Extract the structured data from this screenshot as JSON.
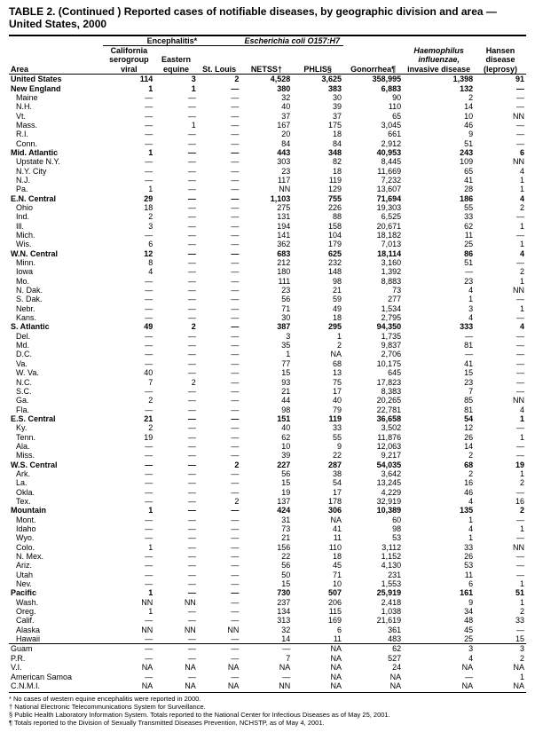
{
  "title": "TABLE 2. (Continued ) Reported cases of notifiable diseases, by geographic division and area — United States, 2000",
  "header": {
    "area": "Area",
    "group_enceph": "Encephalitis*",
    "enceph_ca": "California serogroup viral",
    "enceph_ee": "Eastern equine",
    "enceph_sl": "St. Louis",
    "group_ecoli": "Escherichia coli O157:H7",
    "netss": "NETSS†",
    "phlis": "PHLIS§",
    "gono": "Gonorrhea¶",
    "haemo": "Haemophilus influenzae, invasive disease",
    "hansen": "Hansen disease (leprosy)"
  },
  "footnotes": [
    "* No cases of western equine encephalitis were reported in 2000.",
    "† National Electronic Telecommunications System for Surveillance.",
    "§ Public Health Laboratory Information System. Totals reported to the National Center for Infectious Diseases as of May 25, 2001.",
    "¶ Totals reported to the Division of Sexually Transmitted Diseases Prevention, NCHSTP, as of May 4, 2001."
  ],
  "rows": [
    {
      "area": "United States",
      "bold": true,
      "ca": "114",
      "ee": "3",
      "sl": "2",
      "net": "4,528",
      "ph": "3,625",
      "gon": "358,995",
      "hi": "1,398",
      "hd": "91"
    },
    {
      "area": "New England",
      "bold": true,
      "ca": "1",
      "ee": "1",
      "sl": "—",
      "net": "380",
      "ph": "383",
      "gon": "6,883",
      "hi": "132",
      "hd": "—"
    },
    {
      "area": "Maine",
      "indent": 1,
      "ca": "—",
      "ee": "—",
      "sl": "—",
      "net": "32",
      "ph": "30",
      "gon": "90",
      "hi": "2",
      "hd": "—"
    },
    {
      "area": "N.H.",
      "indent": 1,
      "ca": "—",
      "ee": "—",
      "sl": "—",
      "net": "40",
      "ph": "39",
      "gon": "110",
      "hi": "14",
      "hd": "—"
    },
    {
      "area": "Vt.",
      "indent": 1,
      "ca": "—",
      "ee": "—",
      "sl": "—",
      "net": "37",
      "ph": "37",
      "gon": "65",
      "hi": "10",
      "hd": "NN"
    },
    {
      "area": "Mass.",
      "indent": 1,
      "ca": "—",
      "ee": "1",
      "sl": "—",
      "net": "167",
      "ph": "175",
      "gon": "3,045",
      "hi": "46",
      "hd": "—"
    },
    {
      "area": "R.I.",
      "indent": 1,
      "ca": "—",
      "ee": "—",
      "sl": "—",
      "net": "20",
      "ph": "18",
      "gon": "661",
      "hi": "9",
      "hd": "—"
    },
    {
      "area": "Conn.",
      "indent": 1,
      "ca": "—",
      "ee": "—",
      "sl": "—",
      "net": "84",
      "ph": "84",
      "gon": "2,912",
      "hi": "51",
      "hd": "—"
    },
    {
      "area": "Mid. Atlantic",
      "bold": true,
      "ca": "1",
      "ee": "—",
      "sl": "—",
      "net": "443",
      "ph": "348",
      "gon": "40,953",
      "hi": "243",
      "hd": "6"
    },
    {
      "area": "Upstate N.Y.",
      "indent": 1,
      "ca": "—",
      "ee": "—",
      "sl": "—",
      "net": "303",
      "ph": "82",
      "gon": "8,445",
      "hi": "109",
      "hd": "NN"
    },
    {
      "area": "N.Y. City",
      "indent": 1,
      "ca": "—",
      "ee": "—",
      "sl": "—",
      "net": "23",
      "ph": "18",
      "gon": "11,669",
      "hi": "65",
      "hd": "4"
    },
    {
      "area": "N.J.",
      "indent": 1,
      "ca": "—",
      "ee": "—",
      "sl": "—",
      "net": "117",
      "ph": "119",
      "gon": "7,232",
      "hi": "41",
      "hd": "1"
    },
    {
      "area": "Pa.",
      "indent": 1,
      "ca": "1",
      "ee": "—",
      "sl": "—",
      "net": "NN",
      "ph": "129",
      "gon": "13,607",
      "hi": "28",
      "hd": "1"
    },
    {
      "area": "E.N. Central",
      "bold": true,
      "ca": "29",
      "ee": "—",
      "sl": "—",
      "net": "1,103",
      "ph": "755",
      "gon": "71,694",
      "hi": "186",
      "hd": "4"
    },
    {
      "area": "Ohio",
      "indent": 1,
      "ca": "18",
      "ee": "—",
      "sl": "—",
      "net": "275",
      "ph": "226",
      "gon": "19,303",
      "hi": "55",
      "hd": "2"
    },
    {
      "area": "Ind.",
      "indent": 1,
      "ca": "2",
      "ee": "—",
      "sl": "—",
      "net": "131",
      "ph": "88",
      "gon": "6,525",
      "hi": "33",
      "hd": "—"
    },
    {
      "area": "Ill.",
      "indent": 1,
      "ca": "3",
      "ee": "—",
      "sl": "—",
      "net": "194",
      "ph": "158",
      "gon": "20,671",
      "hi": "62",
      "hd": "1"
    },
    {
      "area": "Mich.",
      "indent": 1,
      "ca": "—",
      "ee": "—",
      "sl": "—",
      "net": "141",
      "ph": "104",
      "gon": "18,182",
      "hi": "11",
      "hd": "—"
    },
    {
      "area": "Wis.",
      "indent": 1,
      "ca": "6",
      "ee": "—",
      "sl": "—",
      "net": "362",
      "ph": "179",
      "gon": "7,013",
      "hi": "25",
      "hd": "1"
    },
    {
      "area": "W.N. Central",
      "bold": true,
      "ca": "12",
      "ee": "—",
      "sl": "—",
      "net": "683",
      "ph": "625",
      "gon": "18,114",
      "hi": "86",
      "hd": "4"
    },
    {
      "area": "Minn.",
      "indent": 1,
      "ca": "8",
      "ee": "—",
      "sl": "—",
      "net": "212",
      "ph": "232",
      "gon": "3,160",
      "hi": "51",
      "hd": "—"
    },
    {
      "area": "Iowa",
      "indent": 1,
      "ca": "4",
      "ee": "—",
      "sl": "—",
      "net": "180",
      "ph": "148",
      "gon": "1,392",
      "hi": "—",
      "hd": "2"
    },
    {
      "area": "Mo.",
      "indent": 1,
      "ca": "—",
      "ee": "—",
      "sl": "—",
      "net": "111",
      "ph": "98",
      "gon": "8,883",
      "hi": "23",
      "hd": "1"
    },
    {
      "area": "N. Dak.",
      "indent": 1,
      "ca": "—",
      "ee": "—",
      "sl": "—",
      "net": "23",
      "ph": "21",
      "gon": "73",
      "hi": "4",
      "hd": "NN"
    },
    {
      "area": "S. Dak.",
      "indent": 1,
      "ca": "—",
      "ee": "—",
      "sl": "—",
      "net": "56",
      "ph": "59",
      "gon": "277",
      "hi": "1",
      "hd": "—"
    },
    {
      "area": "Nebr.",
      "indent": 1,
      "ca": "—",
      "ee": "—",
      "sl": "—",
      "net": "71",
      "ph": "49",
      "gon": "1,534",
      "hi": "3",
      "hd": "1"
    },
    {
      "area": "Kans.",
      "indent": 1,
      "ca": "—",
      "ee": "—",
      "sl": "—",
      "net": "30",
      "ph": "18",
      "gon": "2,795",
      "hi": "4",
      "hd": "—"
    },
    {
      "area": "S. Atlantic",
      "bold": true,
      "ca": "49",
      "ee": "2",
      "sl": "—",
      "net": "387",
      "ph": "295",
      "gon": "94,350",
      "hi": "333",
      "hd": "4"
    },
    {
      "area": "Del.",
      "indent": 1,
      "ca": "—",
      "ee": "—",
      "sl": "—",
      "net": "3",
      "ph": "1",
      "gon": "1,735",
      "hi": "—",
      "hd": "—"
    },
    {
      "area": "Md.",
      "indent": 1,
      "ca": "—",
      "ee": "—",
      "sl": "—",
      "net": "35",
      "ph": "2",
      "gon": "9,837",
      "hi": "81",
      "hd": "—"
    },
    {
      "area": "D.C.",
      "indent": 1,
      "ca": "—",
      "ee": "—",
      "sl": "—",
      "net": "1",
      "ph": "NA",
      "gon": "2,706",
      "hi": "—",
      "hd": "—"
    },
    {
      "area": "Va.",
      "indent": 1,
      "ca": "—",
      "ee": "—",
      "sl": "—",
      "net": "77",
      "ph": "68",
      "gon": "10,175",
      "hi": "41",
      "hd": "—"
    },
    {
      "area": "W. Va.",
      "indent": 1,
      "ca": "40",
      "ee": "—",
      "sl": "—",
      "net": "15",
      "ph": "13",
      "gon": "645",
      "hi": "15",
      "hd": "—"
    },
    {
      "area": "N.C.",
      "indent": 1,
      "ca": "7",
      "ee": "2",
      "sl": "—",
      "net": "93",
      "ph": "75",
      "gon": "17,823",
      "hi": "23",
      "hd": "—"
    },
    {
      "area": "S.C.",
      "indent": 1,
      "ca": "—",
      "ee": "—",
      "sl": "—",
      "net": "21",
      "ph": "17",
      "gon": "8,383",
      "hi": "7",
      "hd": "—"
    },
    {
      "area": "Ga.",
      "indent": 1,
      "ca": "2",
      "ee": "—",
      "sl": "—",
      "net": "44",
      "ph": "40",
      "gon": "20,265",
      "hi": "85",
      "hd": "NN"
    },
    {
      "area": "Fla.",
      "indent": 1,
      "ca": "—",
      "ee": "—",
      "sl": "—",
      "net": "98",
      "ph": "79",
      "gon": "22,781",
      "hi": "81",
      "hd": "4"
    },
    {
      "area": "E.S. Central",
      "bold": true,
      "ca": "21",
      "ee": "—",
      "sl": "—",
      "net": "151",
      "ph": "119",
      "gon": "36,658",
      "hi": "54",
      "hd": "1"
    },
    {
      "area": "Ky.",
      "indent": 1,
      "ca": "2",
      "ee": "—",
      "sl": "—",
      "net": "40",
      "ph": "33",
      "gon": "3,502",
      "hi": "12",
      "hd": "—"
    },
    {
      "area": "Tenn.",
      "indent": 1,
      "ca": "19",
      "ee": "—",
      "sl": "—",
      "net": "62",
      "ph": "55",
      "gon": "11,876",
      "hi": "26",
      "hd": "1"
    },
    {
      "area": "Ala.",
      "indent": 1,
      "ca": "—",
      "ee": "—",
      "sl": "—",
      "net": "10",
      "ph": "9",
      "gon": "12,063",
      "hi": "14",
      "hd": "—"
    },
    {
      "area": "Miss.",
      "indent": 1,
      "ca": "—",
      "ee": "—",
      "sl": "—",
      "net": "39",
      "ph": "22",
      "gon": "9,217",
      "hi": "2",
      "hd": "—"
    },
    {
      "area": "W.S. Central",
      "bold": true,
      "ca": "—",
      "ee": "—",
      "sl": "2",
      "net": "227",
      "ph": "287",
      "gon": "54,035",
      "hi": "68",
      "hd": "19"
    },
    {
      "area": "Ark.",
      "indent": 1,
      "ca": "—",
      "ee": "—",
      "sl": "—",
      "net": "56",
      "ph": "38",
      "gon": "3,642",
      "hi": "2",
      "hd": "1"
    },
    {
      "area": "La.",
      "indent": 1,
      "ca": "—",
      "ee": "—",
      "sl": "—",
      "net": "15",
      "ph": "54",
      "gon": "13,245",
      "hi": "16",
      "hd": "2"
    },
    {
      "area": "Okla.",
      "indent": 1,
      "ca": "—",
      "ee": "—",
      "sl": "—",
      "net": "19",
      "ph": "17",
      "gon": "4,229",
      "hi": "46",
      "hd": "—"
    },
    {
      "area": "Tex.",
      "indent": 1,
      "ca": "—",
      "ee": "—",
      "sl": "2",
      "net": "137",
      "ph": "178",
      "gon": "32,919",
      "hi": "4",
      "hd": "16"
    },
    {
      "area": "Mountain",
      "bold": true,
      "ca": "1",
      "ee": "—",
      "sl": "—",
      "net": "424",
      "ph": "306",
      "gon": "10,389",
      "hi": "135",
      "hd": "2"
    },
    {
      "area": "Mont.",
      "indent": 1,
      "ca": "—",
      "ee": "—",
      "sl": "—",
      "net": "31",
      "ph": "NA",
      "gon": "60",
      "hi": "1",
      "hd": "—"
    },
    {
      "area": "Idaho",
      "indent": 1,
      "ca": "—",
      "ee": "—",
      "sl": "—",
      "net": "73",
      "ph": "41",
      "gon": "98",
      "hi": "4",
      "hd": "1"
    },
    {
      "area": "Wyo.",
      "indent": 1,
      "ca": "—",
      "ee": "—",
      "sl": "—",
      "net": "21",
      "ph": "11",
      "gon": "53",
      "hi": "1",
      "hd": "—"
    },
    {
      "area": "Colo.",
      "indent": 1,
      "ca": "1",
      "ee": "—",
      "sl": "—",
      "net": "156",
      "ph": "110",
      "gon": "3,112",
      "hi": "33",
      "hd": "NN"
    },
    {
      "area": "N. Mex.",
      "indent": 1,
      "ca": "—",
      "ee": "—",
      "sl": "—",
      "net": "22",
      "ph": "18",
      "gon": "1,152",
      "hi": "26",
      "hd": "—"
    },
    {
      "area": "Ariz.",
      "indent": 1,
      "ca": "—",
      "ee": "—",
      "sl": "—",
      "net": "56",
      "ph": "45",
      "gon": "4,130",
      "hi": "53",
      "hd": "—"
    },
    {
      "area": "Utah",
      "indent": 1,
      "ca": "—",
      "ee": "—",
      "sl": "—",
      "net": "50",
      "ph": "71",
      "gon": "231",
      "hi": "11",
      "hd": "—"
    },
    {
      "area": "Nev.",
      "indent": 1,
      "ca": "—",
      "ee": "—",
      "sl": "—",
      "net": "15",
      "ph": "10",
      "gon": "1,553",
      "hi": "6",
      "hd": "1"
    },
    {
      "area": "Pacific",
      "bold": true,
      "ca": "1",
      "ee": "—",
      "sl": "—",
      "net": "730",
      "ph": "507",
      "gon": "25,919",
      "hi": "161",
      "hd": "51"
    },
    {
      "area": "Wash.",
      "indent": 1,
      "ca": "NN",
      "ee": "NN",
      "sl": "—",
      "net": "237",
      "ph": "206",
      "gon": "2,418",
      "hi": "9",
      "hd": "1"
    },
    {
      "area": "Oreg.",
      "indent": 1,
      "ca": "1",
      "ee": "—",
      "sl": "—",
      "net": "134",
      "ph": "115",
      "gon": "1,038",
      "hi": "34",
      "hd": "2"
    },
    {
      "area": "Calif.",
      "indent": 1,
      "ca": "—",
      "ee": "—",
      "sl": "—",
      "net": "313",
      "ph": "169",
      "gon": "21,619",
      "hi": "48",
      "hd": "33"
    },
    {
      "area": "Alaska",
      "indent": 1,
      "ca": "NN",
      "ee": "NN",
      "sl": "NN",
      "net": "32",
      "ph": "6",
      "gon": "361",
      "hi": "45",
      "hd": "—"
    },
    {
      "area": "Hawaii",
      "indent": 1,
      "ca": "—",
      "ee": "—",
      "sl": "—",
      "net": "14",
      "ph": "11",
      "gon": "483",
      "hi": "25",
      "hd": "15"
    },
    {
      "area": "Guam",
      "sep": true,
      "ca": "—",
      "ee": "—",
      "sl": "—",
      "net": "—",
      "ph": "NA",
      "gon": "62",
      "hi": "3",
      "hd": "3"
    },
    {
      "area": "P.R.",
      "ca": "—",
      "ee": "—",
      "sl": "—",
      "net": "7",
      "ph": "NA",
      "gon": "527",
      "hi": "4",
      "hd": "2"
    },
    {
      "area": "V.I.",
      "ca": "NA",
      "ee": "NA",
      "sl": "NA",
      "net": "NA",
      "ph": "NA",
      "gon": "24",
      "hi": "NA",
      "hd": "NA"
    },
    {
      "area": "American Samoa",
      "ca": "—",
      "ee": "—",
      "sl": "—",
      "net": "—",
      "ph": "NA",
      "gon": "NA",
      "hi": "—",
      "hd": "1"
    },
    {
      "area": "C.N.M.I.",
      "ca": "NA",
      "ee": "NA",
      "sl": "NA",
      "net": "NN",
      "ph": "NA",
      "gon": "NA",
      "hi": "NA",
      "hd": "NA"
    }
  ]
}
